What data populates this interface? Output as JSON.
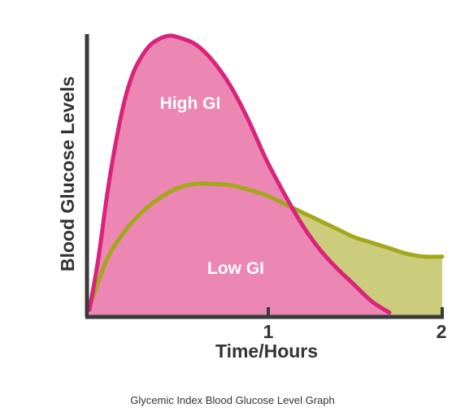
{
  "chart_data": {
    "type": "area",
    "xlabel": "Time/Hours",
    "ylabel": "Blood Glucose Levels",
    "xlim": [
      0,
      2
    ],
    "ylim": [
      0,
      1
    ],
    "xticks": [
      "1",
      "2"
    ],
    "grid": false,
    "legend": "none",
    "caption": "Glycemic Index Blood Glucose Level Graph",
    "series": [
      {
        "name": "Low GI",
        "fill": "#cbcc7c",
        "stroke": "#a3a71a",
        "x": [
          0,
          0.1,
          0.2,
          0.3,
          0.4,
          0.5,
          0.6,
          0.7,
          0.8,
          0.9,
          1.0,
          1.1,
          1.2,
          1.3,
          1.4,
          1.5,
          1.6,
          1.7,
          1.8,
          1.9,
          2.0
        ],
        "y": [
          0.03,
          0.2,
          0.3,
          0.37,
          0.42,
          0.455,
          0.47,
          0.47,
          0.465,
          0.45,
          0.43,
          0.4,
          0.37,
          0.34,
          0.31,
          0.28,
          0.26,
          0.24,
          0.22,
          0.21,
          0.21
        ]
      },
      {
        "name": "High GI",
        "fill": "#ec86b2",
        "stroke": "#d8247a",
        "x": [
          0,
          0.05,
          0.1,
          0.15,
          0.2,
          0.25,
          0.3,
          0.35,
          0.4,
          0.45,
          0.5,
          0.6,
          0.7,
          0.8,
          0.9,
          1.0,
          1.1,
          1.2,
          1.3,
          1.4,
          1.5,
          1.6,
          1.7
        ],
        "y": [
          0.02,
          0.2,
          0.43,
          0.62,
          0.77,
          0.87,
          0.93,
          0.97,
          0.99,
          1.0,
          0.995,
          0.97,
          0.91,
          0.82,
          0.7,
          0.56,
          0.44,
          0.33,
          0.24,
          0.17,
          0.11,
          0.05,
          0.01
        ]
      }
    ]
  }
}
